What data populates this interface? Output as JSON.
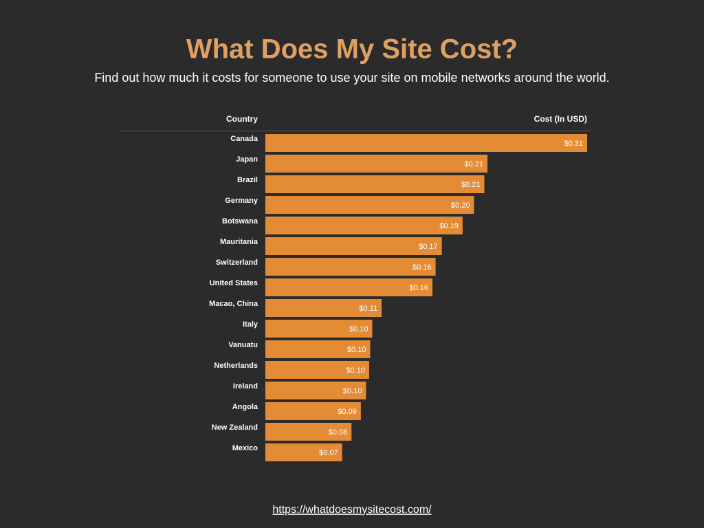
{
  "chart_data": {
    "type": "bar",
    "orientation": "horizontal",
    "title": "What Does My Site Cost?",
    "subtitle": "Find out how much it costs for someone to use your site on mobile networks around the world.",
    "category_header": "Country",
    "value_header": "Cost (In USD)",
    "color": "#e38b35",
    "categories": [
      "Canada",
      "Japan",
      "Brazil",
      "Germany",
      "Botswana",
      "Mauritania",
      "Switzerland",
      "United States",
      "Macao, China",
      "Italy",
      "Vanuatu",
      "Netherlands",
      "Ireland",
      "Angola",
      "New Zealand",
      "Mexico"
    ],
    "values": [
      0.31,
      0.214,
      0.211,
      0.201,
      0.19,
      0.17,
      0.164,
      0.161,
      0.112,
      0.103,
      0.101,
      0.1,
      0.097,
      0.092,
      0.083,
      0.074
    ],
    "value_labels": [
      "$0.31",
      "$0.21",
      "$0.21",
      "$0.20",
      "$0.19",
      "$0.17",
      "$0.16",
      "$0.16",
      "$0.11",
      "$0.10",
      "$0.10",
      "$0.10",
      "$0.10",
      "$0.09",
      "$0.08",
      "$0.07"
    ],
    "footer_link": "https://whatdoesmysitecost.com/"
  }
}
